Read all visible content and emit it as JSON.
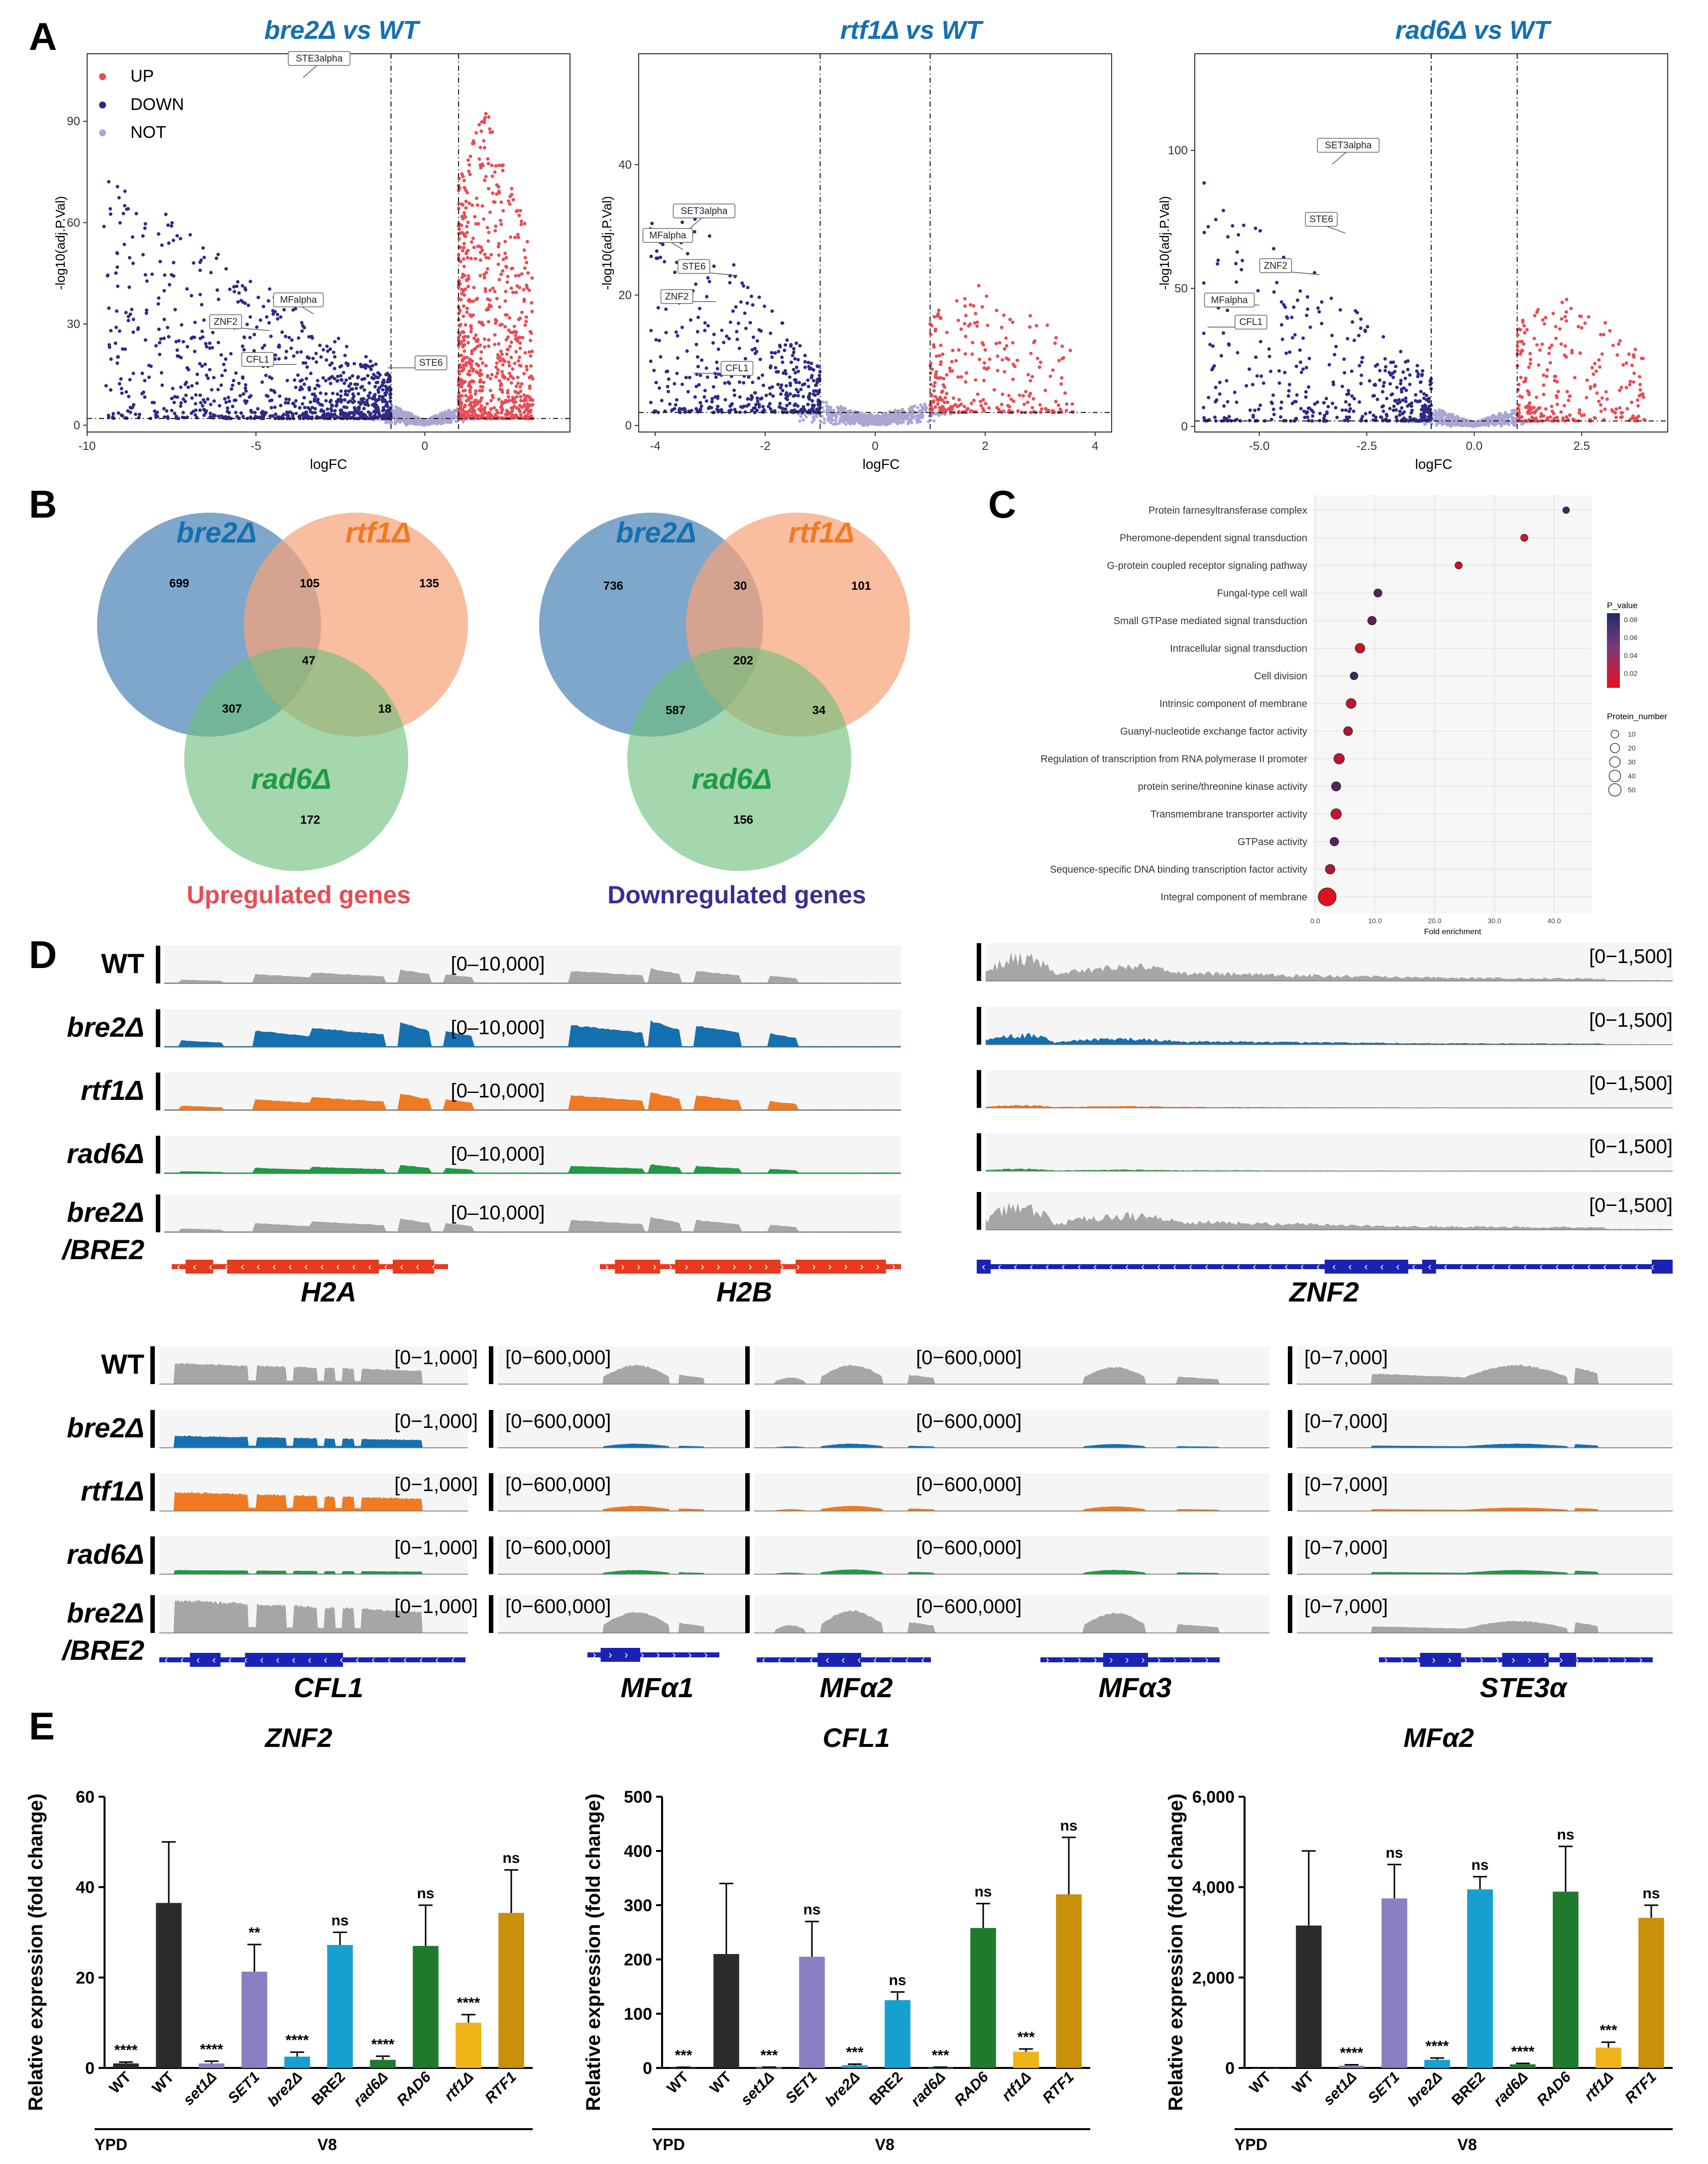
{
  "panel_letters": [
    "A",
    "B",
    "C",
    "D",
    "E"
  ],
  "colors": {
    "up": "#e84c55",
    "down": "#2e2a85",
    "not": "#a9a6d4",
    "blue": "#1570b0",
    "orange": "#f07a22",
    "green": "#1f9a45",
    "gray": "#a6a6a6",
    "red_gene": "#e83a1e",
    "navy_gene": "#1a22b4"
  },
  "chart_data": [
    {
      "type": "scatter",
      "id": "volcano_bre2",
      "title": "bre2Δ vs WT",
      "xlabel": "logFC",
      "ylabel": "-log10(adj.P.Val)",
      "xlim": [
        -10,
        4.3
      ],
      "ylim": [
        -2,
        110
      ],
      "xticks": [
        -10,
        -5,
        0
      ],
      "yticks": [
        0,
        30,
        60,
        90
      ],
      "legend": [
        "UP",
        "DOWN",
        "NOT"
      ],
      "thresholds": {
        "logfc": [
          -1,
          1
        ],
        "p": 2
      },
      "labeled_points": [
        {
          "label": "STE3alpha",
          "x": -3.6,
          "y": 103
        },
        {
          "label": "MFalpha",
          "x": -3.3,
          "y": 33
        },
        {
          "label": "ZNF2",
          "x": -4.6,
          "y": 28
        },
        {
          "label": "CFL1",
          "x": -3.8,
          "y": 18
        },
        {
          "label": "STE6",
          "x": -1.1,
          "y": 17
        }
      ]
    },
    {
      "type": "scatter",
      "id": "volcano_rtf1",
      "title": "rtf1Δ vs WT",
      "xlabel": "logFC",
      "ylabel": "-log10(adj.P.Val)",
      "xlim": [
        -4.3,
        4.3
      ],
      "ylim": [
        -1,
        57
      ],
      "xticks": [
        -4,
        -2,
        0,
        2,
        4
      ],
      "yticks": [
        0,
        20,
        40
      ],
      "thresholds": {
        "logfc": [
          -1,
          1
        ],
        "p": 2
      },
      "labeled_points": [
        {
          "label": "SET3alpha",
          "x": -3.4,
          "y": 30
        },
        {
          "label": "MFalpha",
          "x": -3.5,
          "y": 27
        },
        {
          "label": "STE6",
          "x": -2.5,
          "y": 23
        },
        {
          "label": "ZNF2",
          "x": -2.9,
          "y": 19
        },
        {
          "label": "CFL1",
          "x": -3.3,
          "y": 8
        }
      ]
    },
    {
      "type": "scatter",
      "id": "volcano_rad6",
      "title": "rad6Δ vs WT",
      "xlabel": "logFC",
      "ylabel": "-log10(adj.P.Val)",
      "xlim": [
        -6.5,
        4.5
      ],
      "ylim": [
        -2,
        135
      ],
      "xticks": [
        -5.0,
        -2.5,
        0.0,
        2.5
      ],
      "yticks": [
        0,
        50,
        100
      ],
      "thresholds": {
        "logfc": [
          -1,
          1
        ],
        "p": 2
      },
      "labeled_points": [
        {
          "label": "SET3alpha",
          "x": -3.3,
          "y": 95
        },
        {
          "label": "STE6",
          "x": -3.0,
          "y": 70
        },
        {
          "label": "ZNF2",
          "x": -3.6,
          "y": 55
        },
        {
          "label": "MFalpha",
          "x": -5.0,
          "y": 44
        },
        {
          "label": "CFL1",
          "x": -6.2,
          "y": 36
        }
      ]
    },
    {
      "type": "venn",
      "id": "venn_up",
      "title": "Upregulated genes",
      "sets": [
        "bre2Δ",
        "rtf1Δ",
        "rad6Δ"
      ],
      "regions": {
        "bre2_only": "699",
        "rtf1_only": "135",
        "rad6_only": "172",
        "bre2_rtf1": "105",
        "bre2_rad6": "307",
        "rtf1_rad6": "18",
        "all": "47"
      }
    },
    {
      "type": "venn",
      "id": "venn_down",
      "title": "Downregulated genes",
      "sets": [
        "bre2Δ",
        "rtf1Δ",
        "rad6Δ"
      ],
      "regions": {
        "bre2_only": "736",
        "rtf1_only": "101",
        "rad6_only": "156",
        "bre2_rtf1": "30",
        "bre2_rad6": "587",
        "rtf1_rad6": "34",
        "all": "202"
      }
    },
    {
      "type": "scatter",
      "id": "go_dotplot",
      "xlabel": "Fold enrichment",
      "xlim": [
        0,
        45
      ],
      "xticks": [
        "0.0",
        "10.0",
        "20.0",
        "30.0",
        "40.0"
      ],
      "categories": [
        "Protein farnesyltransferase complex",
        "Pheromone-dependent signal transduction",
        "G-protein coupled receptor signaling pathway",
        "Fungal-type cell wall",
        "Small GTPase mediated signal transduction",
        "Intracellular signal transduction",
        "Cell division",
        "Intrinsic component of membrane",
        "Guanyl-nucleotide exchange factor activity",
        "Regulation of transcription from RNA polymerase II promoter",
        "protein serine/threonine kinase activity",
        "Transmembrane transporter activity",
        "GTPase activity",
        "Sequence-specific DNA binding transcription factor activity",
        "Integral component of membrane"
      ],
      "fold_enrichment": [
        42.0,
        35.0,
        24.0,
        10.5,
        9.5,
        7.5,
        6.5,
        6.0,
        5.5,
        4.0,
        3.5,
        3.5,
        3.2,
        2.5,
        2.0
      ],
      "p_value": [
        0.05,
        0.005,
        0.008,
        0.045,
        0.04,
        0.01,
        0.05,
        0.012,
        0.02,
        0.015,
        0.045,
        0.01,
        0.045,
        0.02,
        0.003
      ],
      "protein_number": [
        2,
        3,
        3,
        5,
        6,
        9,
        4,
        10,
        7,
        12,
        8,
        12,
        6,
        9,
        55
      ],
      "legend_color_title": "P_value",
      "legend_color_ticks": [
        "0.08",
        "0.06",
        "0.04",
        "0.02"
      ],
      "legend_size_title": "Protein_number",
      "legend_size_ticks": [
        "10",
        "20",
        "30",
        "40",
        "50"
      ]
    },
    {
      "type": "bar",
      "id": "qpcr_znf2",
      "title": "ZNF2",
      "ylabel": "Relative expression (fold change)",
      "categories": [
        "WT",
        "WT",
        "set1Δ",
        "SET1",
        "bre2Δ",
        "BRE2",
        "rad6Δ",
        "RAD6",
        "rtf1Δ",
        "RTF1"
      ],
      "values": [
        1,
        36.5,
        1,
        21.3,
        2.5,
        27.2,
        1.8,
        27.0,
        10.0,
        34.3
      ],
      "errors": [
        0.3,
        13.5,
        0.5,
        6.0,
        1.0,
        2.8,
        0.8,
        9.0,
        1.8,
        9.5
      ],
      "significance": [
        "****",
        "",
        "****",
        "**",
        "****",
        "ns",
        "****",
        "ns",
        "****",
        "ns"
      ],
      "ylim": [
        0,
        60
      ],
      "yticks": [
        "0",
        "20",
        "40",
        "60"
      ],
      "condition_labels": [
        "YPD",
        "V8"
      ]
    },
    {
      "type": "bar",
      "id": "qpcr_cfl1",
      "title": "CFL1",
      "ylabel": "Relative expression (fold change)",
      "categories": [
        "WT",
        "WT",
        "set1Δ",
        "SET1",
        "bre2Δ",
        "BRE2",
        "rad6Δ",
        "RAD6",
        "rtf1Δ",
        "RTF1"
      ],
      "values": [
        1,
        210,
        1,
        205,
        5,
        125,
        1,
        258,
        30,
        320
      ],
      "errors": [
        0.3,
        130,
        0.5,
        65,
        2,
        15,
        0.5,
        45,
        5,
        105
      ],
      "significance": [
        "***",
        "",
        "***",
        "ns",
        "***",
        "ns",
        "***",
        "ns",
        "***",
        "ns"
      ],
      "ylim": [
        0,
        500
      ],
      "yticks": [
        "0",
        "100",
        "200",
        "300",
        "400",
        "500"
      ],
      "condition_labels": [
        "YPD",
        "V8"
      ]
    },
    {
      "type": "bar",
      "id": "qpcr_mfa2",
      "title": "MFα2",
      "ylabel": "Relative expression (fold change)",
      "categories": [
        "WT",
        "WT",
        "set1Δ",
        "SET1",
        "bre2Δ",
        "BRE2",
        "rad6Δ",
        "RAD6",
        "rtf1Δ",
        "RTF1"
      ],
      "values": [
        1,
        3150,
        50,
        3750,
        180,
        3950,
        80,
        3900,
        450,
        3320
      ],
      "errors": [
        0.5,
        1650,
        20,
        750,
        40,
        280,
        20,
        1000,
        120,
        280
      ],
      "significance": [
        "",
        "",
        "****",
        "ns",
        "****",
        "ns",
        "****",
        "ns",
        "***",
        "ns"
      ],
      "ylim": [
        0,
        6000
      ],
      "yticks": [
        "0",
        "2,000",
        "4,000",
        "6,000"
      ],
      "condition_labels": [
        "YPD",
        "V8"
      ]
    }
  ],
  "tracks_top": {
    "left": {
      "rows": [
        {
          "name": "WT",
          "range": "[0–10,000]"
        },
        {
          "name": "bre2Δ",
          "range": "[0–10,000]"
        },
        {
          "name": "rtf1Δ",
          "range": "[0–10,000]"
        },
        {
          "name": "rad6Δ",
          "range": "[0–10,000]"
        },
        {
          "name": "bre2Δ /BRE2",
          "range": "[0–10,000]"
        }
      ],
      "row_name_line1": [
        "WT",
        "bre2Δ",
        "rtf1Δ",
        "rad6Δ",
        "bre2Δ"
      ],
      "row_name_line2": "/BRE2",
      "genes": [
        "H2A",
        "H2B"
      ]
    },
    "right": {
      "ranges": [
        "[0−1,500]",
        "[0−1,500]",
        "[0−1,500]",
        "[0−1,500]",
        "[0−1,500]"
      ],
      "genes": [
        "ZNF2"
      ]
    }
  },
  "tracks_bottom": {
    "rows": [
      "WT",
      "bre2Δ",
      "rtf1Δ",
      "rad6Δ",
      "bre2Δ"
    ],
    "row2_suffix": "/BRE2",
    "ranges": {
      "cfl1": [
        "[0−1,000]",
        "[0−1,000]",
        "[0−1,000]",
        "[0−1,000]",
        "[0−1,000]"
      ],
      "mfa1": [
        "[0−600,000]",
        "[0−600,000]",
        "[0−600,000]",
        "[0−600,000]",
        "[0−600,000]"
      ],
      "mfa23": [
        "[0−600,000]",
        "[0−600,000]",
        "[0−600,000]",
        "[0−600,000]",
        "[0−600,000]"
      ],
      "ste3": [
        "[0−7,000]",
        "[0−7,000]",
        "[0−7,000]",
        "[0−7,000]",
        "[0−7,000]"
      ]
    },
    "genes": [
      "CFL1",
      "MFα1",
      "MFα2",
      "MFα3",
      "STE3α"
    ]
  }
}
